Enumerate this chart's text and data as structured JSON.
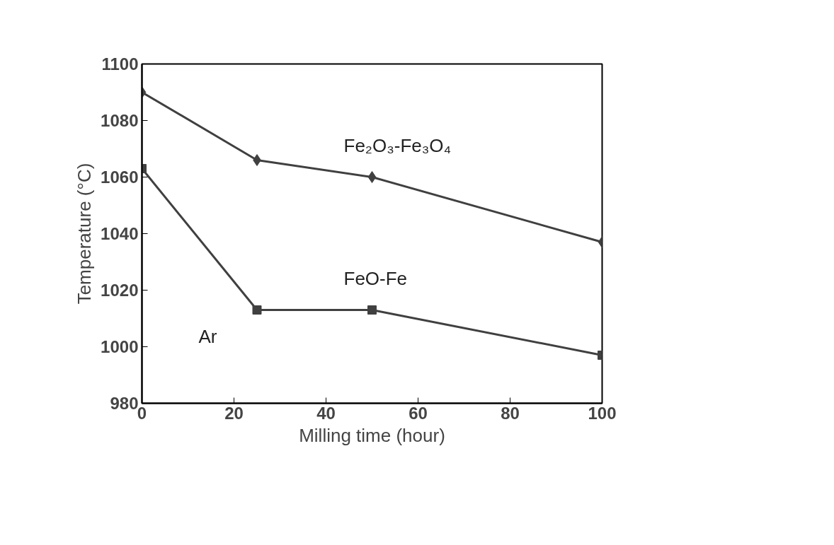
{
  "chart_data": {
    "type": "line",
    "xlabel": "Milling time (hour)",
    "ylabel": "Temperature (°C)",
    "xlim": [
      0,
      100
    ],
    "ylim": [
      980,
      1100
    ],
    "xticks": [
      0,
      20,
      40,
      60,
      80,
      100
    ],
    "yticks": [
      980,
      1000,
      1020,
      1040,
      1060,
      1080,
      1100
    ],
    "grid": false,
    "series": [
      {
        "name": "Fe₂O₃-Fe₃O₄",
        "color": "#404040",
        "marker": "diamond",
        "x": [
          0,
          25,
          50,
          100
        ],
        "values": [
          1090,
          1066,
          1060,
          1037
        ]
      },
      {
        "name": "FeO-Fe",
        "color": "#404040",
        "marker": "square",
        "x": [
          0,
          25,
          50,
          100
        ],
        "values": [
          1063,
          1013,
          1013,
          997
        ]
      }
    ],
    "annotations": [
      "Ar"
    ]
  }
}
